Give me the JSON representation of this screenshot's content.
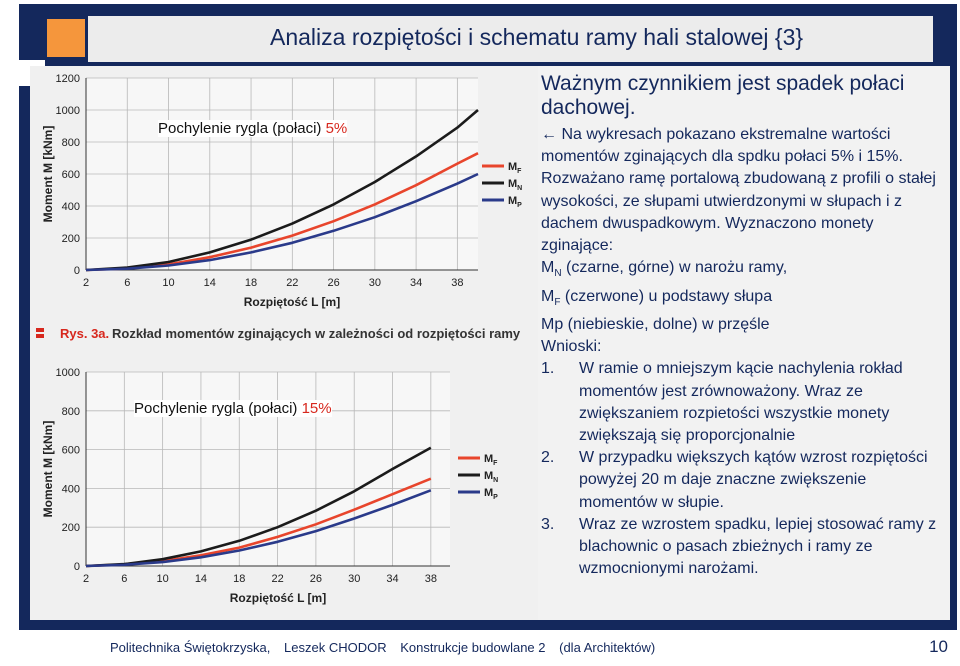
{
  "header": {
    "title": "Analiza rozpiętości i schematu ramy hali stalowej {3}"
  },
  "colors": {
    "frame": "#14285c",
    "accent": "#f5963c",
    "MF": "#e8452c",
    "MN": "#1b1b1b",
    "MP": "#2a3a8a"
  },
  "figure": {
    "caption_prefix": "Rys. 3a.",
    "caption_text": "Rozkład momentów zginających w zależności od rozpiętości ramy"
  },
  "chart_data": [
    {
      "type": "line",
      "overlay_label": "Pochylenie rygla (połaci)",
      "overlay_value": "5%",
      "ylabel": "Moment M [kNm]",
      "xlabel": "Rozpiętość L [m]",
      "yticks": [
        "1200",
        "1000",
        "800",
        "600",
        "400",
        "200",
        "0"
      ],
      "xticks": [
        "2",
        "6",
        "10",
        "14",
        "18",
        "22",
        "26",
        "30",
        "34",
        "38"
      ],
      "ylim": [
        0,
        1200
      ],
      "xlim": [
        2,
        40
      ],
      "grid": true,
      "legend_position": "right",
      "series": [
        {
          "name": "MF",
          "main": "M",
          "sub": "F",
          "color": "#e8452c",
          "points": [
            [
              2,
              0
            ],
            [
              6,
              10
            ],
            [
              10,
              35
            ],
            [
              14,
              80
            ],
            [
              18,
              140
            ],
            [
              22,
              215
            ],
            [
              26,
              305
            ],
            [
              30,
              410
            ],
            [
              34,
              530
            ],
            [
              38,
              665
            ],
            [
              40,
              730
            ]
          ]
        },
        {
          "name": "MN",
          "main": "M",
          "sub": "N",
          "color": "#1b1b1b",
          "points": [
            [
              2,
              0
            ],
            [
              6,
              15
            ],
            [
              10,
              50
            ],
            [
              14,
              110
            ],
            [
              18,
              190
            ],
            [
              22,
              290
            ],
            [
              26,
              410
            ],
            [
              30,
              550
            ],
            [
              34,
              710
            ],
            [
              38,
              890
            ],
            [
              40,
              1000
            ]
          ]
        },
        {
          "name": "MP",
          "main": "M",
          "sub": "P",
          "color": "#2a3a8a",
          "points": [
            [
              2,
              0
            ],
            [
              6,
              8
            ],
            [
              10,
              28
            ],
            [
              14,
              62
            ],
            [
              18,
              110
            ],
            [
              22,
              170
            ],
            [
              26,
              245
            ],
            [
              30,
              330
            ],
            [
              34,
              430
            ],
            [
              38,
              540
            ],
            [
              40,
              600
            ]
          ]
        }
      ]
    },
    {
      "type": "line",
      "overlay_label": "Pochylenie rygla (połaci)",
      "overlay_value": "15%",
      "ylabel": "Moment M [kNm]",
      "xlabel": "Rozpiętość L [m]",
      "yticks": [
        "1000",
        "800",
        "600",
        "400",
        "200",
        "0"
      ],
      "xticks": [
        "2",
        "6",
        "10",
        "14",
        "18",
        "22",
        "26",
        "30",
        "34",
        "38"
      ],
      "ylim": [
        0,
        1000
      ],
      "xlim": [
        2,
        40
      ],
      "grid": true,
      "legend_position": "right",
      "series": [
        {
          "name": "MF",
          "main": "M",
          "sub": "F",
          "color": "#e8452c",
          "points": [
            [
              2,
              0
            ],
            [
              6,
              8
            ],
            [
              10,
              25
            ],
            [
              14,
              55
            ],
            [
              18,
              95
            ],
            [
              22,
              150
            ],
            [
              26,
              215
            ],
            [
              30,
              290
            ],
            [
              34,
              370
            ],
            [
              38,
              450
            ]
          ]
        },
        {
          "name": "MN",
          "main": "M",
          "sub": "N",
          "color": "#1b1b1b",
          "points": [
            [
              2,
              0
            ],
            [
              6,
              10
            ],
            [
              10,
              35
            ],
            [
              14,
              75
            ],
            [
              18,
              130
            ],
            [
              22,
              200
            ],
            [
              26,
              285
            ],
            [
              30,
              385
            ],
            [
              34,
              500
            ],
            [
              38,
              610
            ]
          ]
        },
        {
          "name": "MP",
          "main": "M",
          "sub": "P",
          "color": "#2a3a8a",
          "points": [
            [
              2,
              0
            ],
            [
              6,
              6
            ],
            [
              10,
              20
            ],
            [
              14,
              45
            ],
            [
              18,
              80
            ],
            [
              22,
              125
            ],
            [
              26,
              180
            ],
            [
              30,
              245
            ],
            [
              34,
              315
            ],
            [
              38,
              390
            ]
          ]
        }
      ]
    }
  ],
  "right_panel": {
    "lead": "Ważnym czynnikiem jest spadek połaci dachowej.",
    "intro_arrow": "←",
    "intro": "Na wykresach pokazano ekstremalne wartości momentów zginających dla spdku połaci 5% i 15%. Rozważano ramę portalową zbudowaną z profili o stałej wysokości, ze słupami utwierdzonymi w słupach i z dachem dwuspadkowym. Wyznaczono monety zginające:",
    "mn_main": "M",
    "mn_sub": "N",
    "mn_desc": "(czarne, górne) w narożu ramy,",
    "mf_main": "M",
    "mf_sub": "F",
    "mf_desc": "(czerwone) u podstawy słupa",
    "mp_line": "Mp (niebieskie, dolne) w przęśle",
    "conclusions_heading": "Wnioski:",
    "conclusions": [
      {
        "num": "1.",
        "text": "W ramie o mniejszym kącie nachylenia rokład momentów jest zrównoważony. Wraz ze zwiększaniem rozpietości wszystkie monety zwiększają się proporcjonalnie"
      },
      {
        "num": "2.",
        "text": "W przypadku większych kątów wzrost rozpiętości powyżej 20 m daje znaczne zwiększenie momentów w słupie."
      },
      {
        "num": "3.",
        "text": "Wraz ze wzrostem spadku, lepiej stosować ramy z blachownic o pasach zbieżnych i ramy ze wzmocnionymi narożami."
      }
    ]
  },
  "footer": {
    "institution": "Politechnika Świętokrzyska,",
    "author": "Leszek CHODOR",
    "course": "Konstrukcje budowlane 2",
    "audience": "(dla Architektów)",
    "page": "10"
  }
}
